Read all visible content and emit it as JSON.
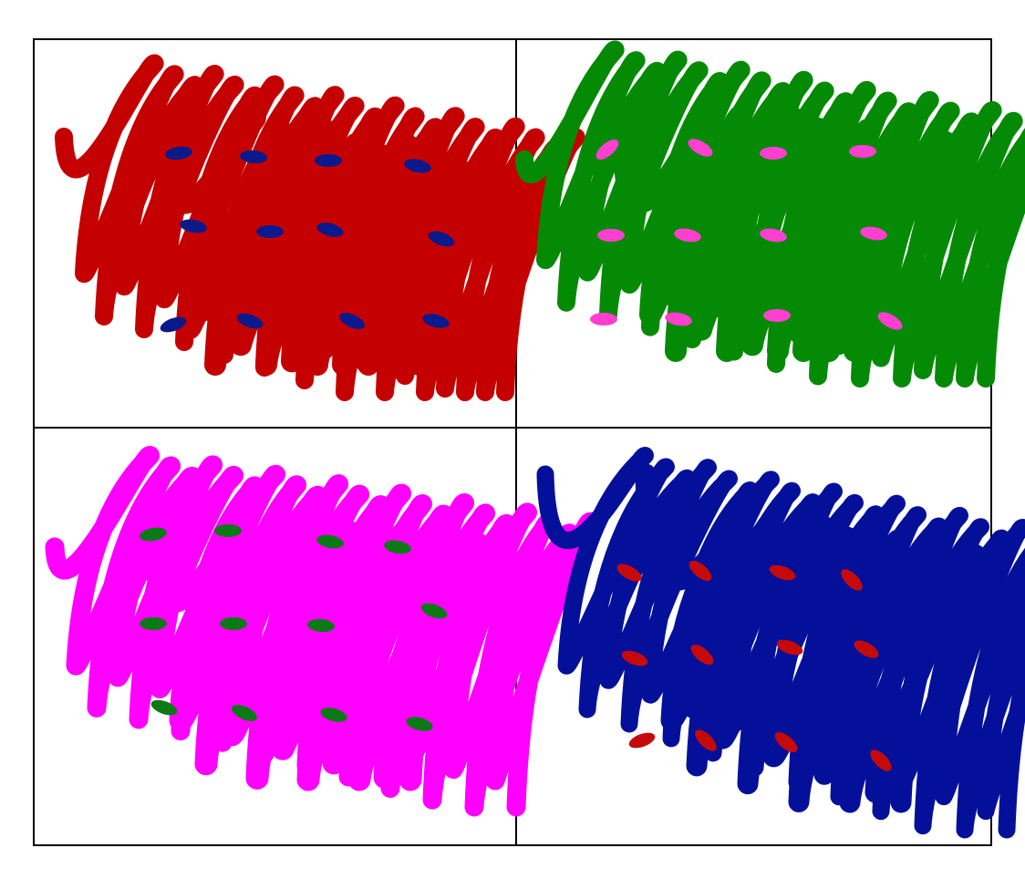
{
  "panels": [
    {
      "name": "top-left",
      "scribble_color": "#c40000",
      "dot_color": "#0a1a8c"
    },
    {
      "name": "top-right",
      "scribble_color": "#058a05",
      "dot_color": "#ff3fd0"
    },
    {
      "name": "bottom-left",
      "scribble_color": "#ff00ff",
      "dot_color": "#0a7a14"
    },
    {
      "name": "bottom-right",
      "scribble_color": "#04109a",
      "dot_color": "#c50a0a"
    }
  ],
  "marks_per_panel": 12
}
